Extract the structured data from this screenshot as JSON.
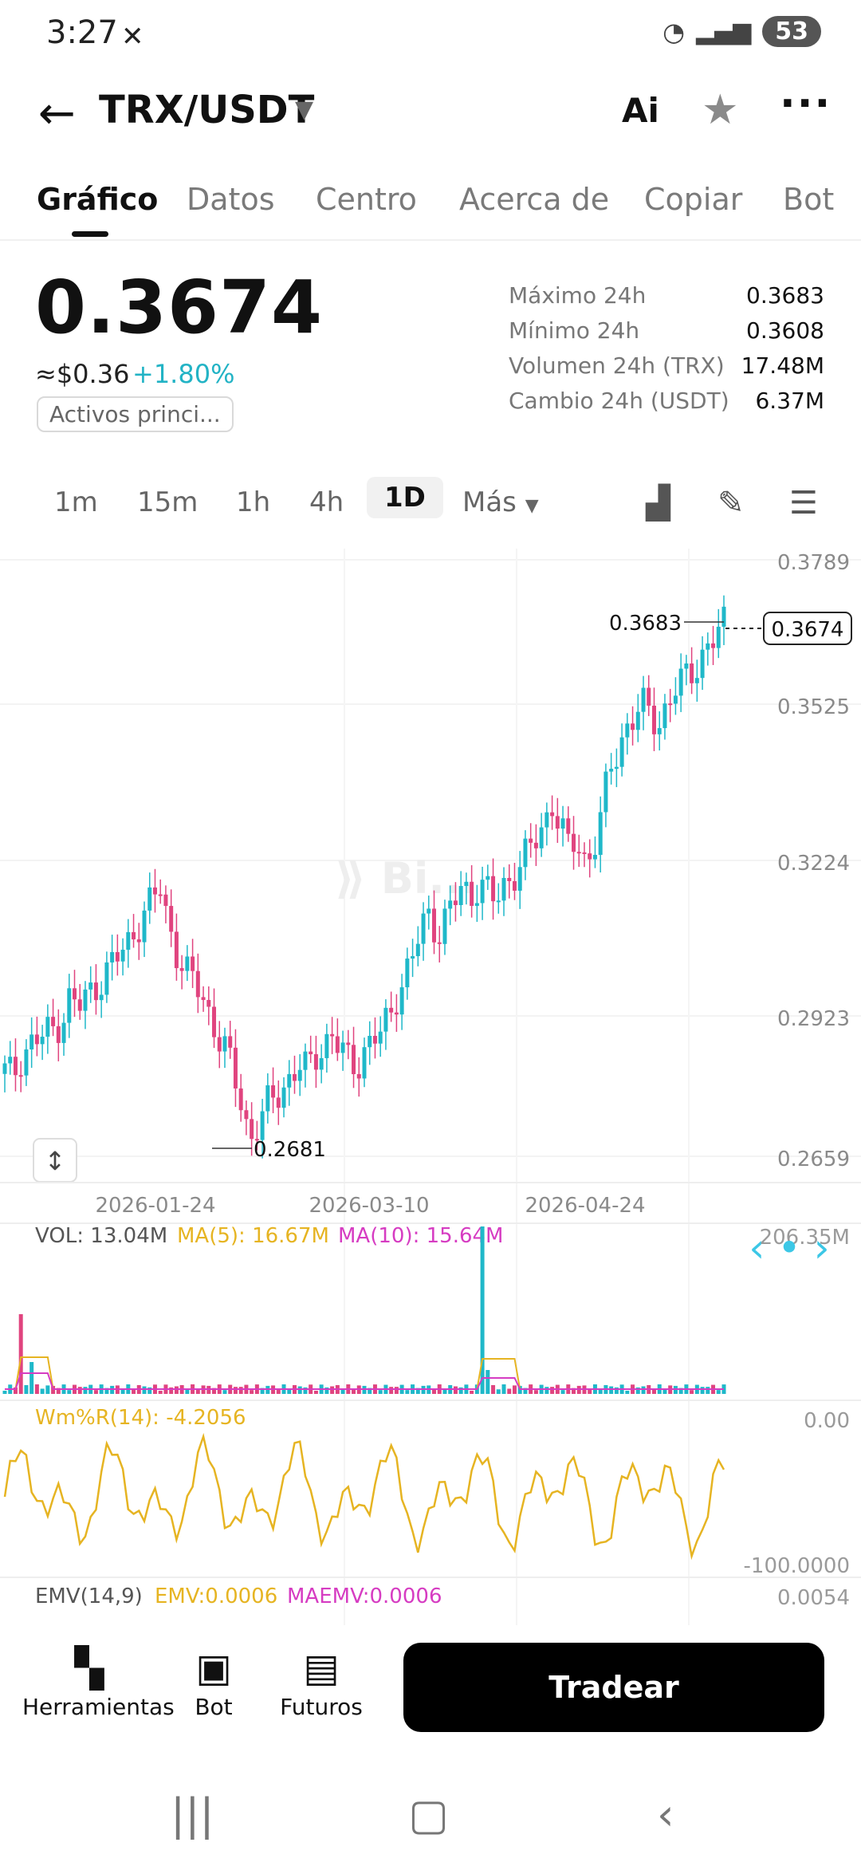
{
  "status": {
    "time": "3:27",
    "battery": "53"
  },
  "header": {
    "pair": "TRX/USDT",
    "ai": "Ai"
  },
  "tabs": [
    "Gráfico",
    "Datos",
    "Centro",
    "Acerca de",
    "Copiar",
    "Bot"
  ],
  "price": {
    "last": "0.3674",
    "usd": "≈$0.36",
    "change": "+1.80%",
    "badge": "Activos princi..."
  },
  "stats": [
    {
      "label": "Máximo 24h",
      "value": "0.3683"
    },
    {
      "label": "Mínimo 24h",
      "value": "0.3608"
    },
    {
      "label": "Volumen 24h (TRX)",
      "value": "17.48M"
    },
    {
      "label": "Cambio 24h (USDT)",
      "value": "6.37M"
    }
  ],
  "intervals": [
    "1m",
    "15m",
    "1h",
    "4h",
    "1D",
    "Más"
  ],
  "chart_data": {
    "type": "candlestick",
    "y_ticks": [
      "0.3789",
      "0.3525",
      "0.3224",
      "0.2923",
      "0.2659"
    ],
    "ylim": [
      0.2659,
      0.3789
    ],
    "x_ticks": [
      "2026-01-24",
      "2026-03-10",
      "2026-04-24"
    ],
    "high_marker": "0.3683",
    "low_marker": "0.2681",
    "last_price": "0.3674",
    "up_color": "#1fb8c9",
    "down_color": "#e0447f",
    "close_path": [
      0.282,
      0.281,
      0.285,
      0.287,
      0.288,
      0.289,
      0.29,
      0.292,
      0.296,
      0.294,
      0.296,
      0.298,
      0.3,
      0.302,
      0.304,
      0.306,
      0.309,
      0.312,
      0.314,
      0.317,
      0.31,
      0.305,
      0.301,
      0.299,
      0.297,
      0.293,
      0.289,
      0.286,
      0.281,
      0.276,
      0.269,
      0.272,
      0.275,
      0.277,
      0.279,
      0.281,
      0.283,
      0.282,
      0.285,
      0.287,
      0.289,
      0.286,
      0.284,
      0.283,
      0.286,
      0.288,
      0.289,
      0.292,
      0.297,
      0.3,
      0.304,
      0.309,
      0.312,
      0.308,
      0.311,
      0.314,
      0.317,
      0.315,
      0.318,
      0.316,
      0.314,
      0.317,
      0.319,
      0.321,
      0.323,
      0.326,
      0.329,
      0.333,
      0.328,
      0.324,
      0.326,
      0.322,
      0.324,
      0.33,
      0.339,
      0.343,
      0.347,
      0.349,
      0.351,
      0.35,
      0.348,
      0.351,
      0.354,
      0.356,
      0.358,
      0.36,
      0.362,
      0.364,
      0.367
    ]
  },
  "volume": {
    "label": "VOL: 13.04M",
    "ma5": "MA(5): 16.67M",
    "ma10": "MA(10): 15.64M",
    "max": "206.35M"
  },
  "wr": {
    "label": "Wm%R(14): -4.2056",
    "top": "0.00",
    "bottom": "-100.0000"
  },
  "emv": {
    "label": "EMV(14,9)",
    "emv": "EMV:0.0006",
    "maemv": "MAEMV:0.0006",
    "right": "0.0054"
  },
  "bottom_nav": [
    {
      "label": "Herramientas",
      "icon": "tools-icon"
    },
    {
      "label": "Bot",
      "icon": "bot-icon"
    },
    {
      "label": "Futuros",
      "icon": "futures-icon"
    }
  ],
  "trade_label": "Tradear"
}
